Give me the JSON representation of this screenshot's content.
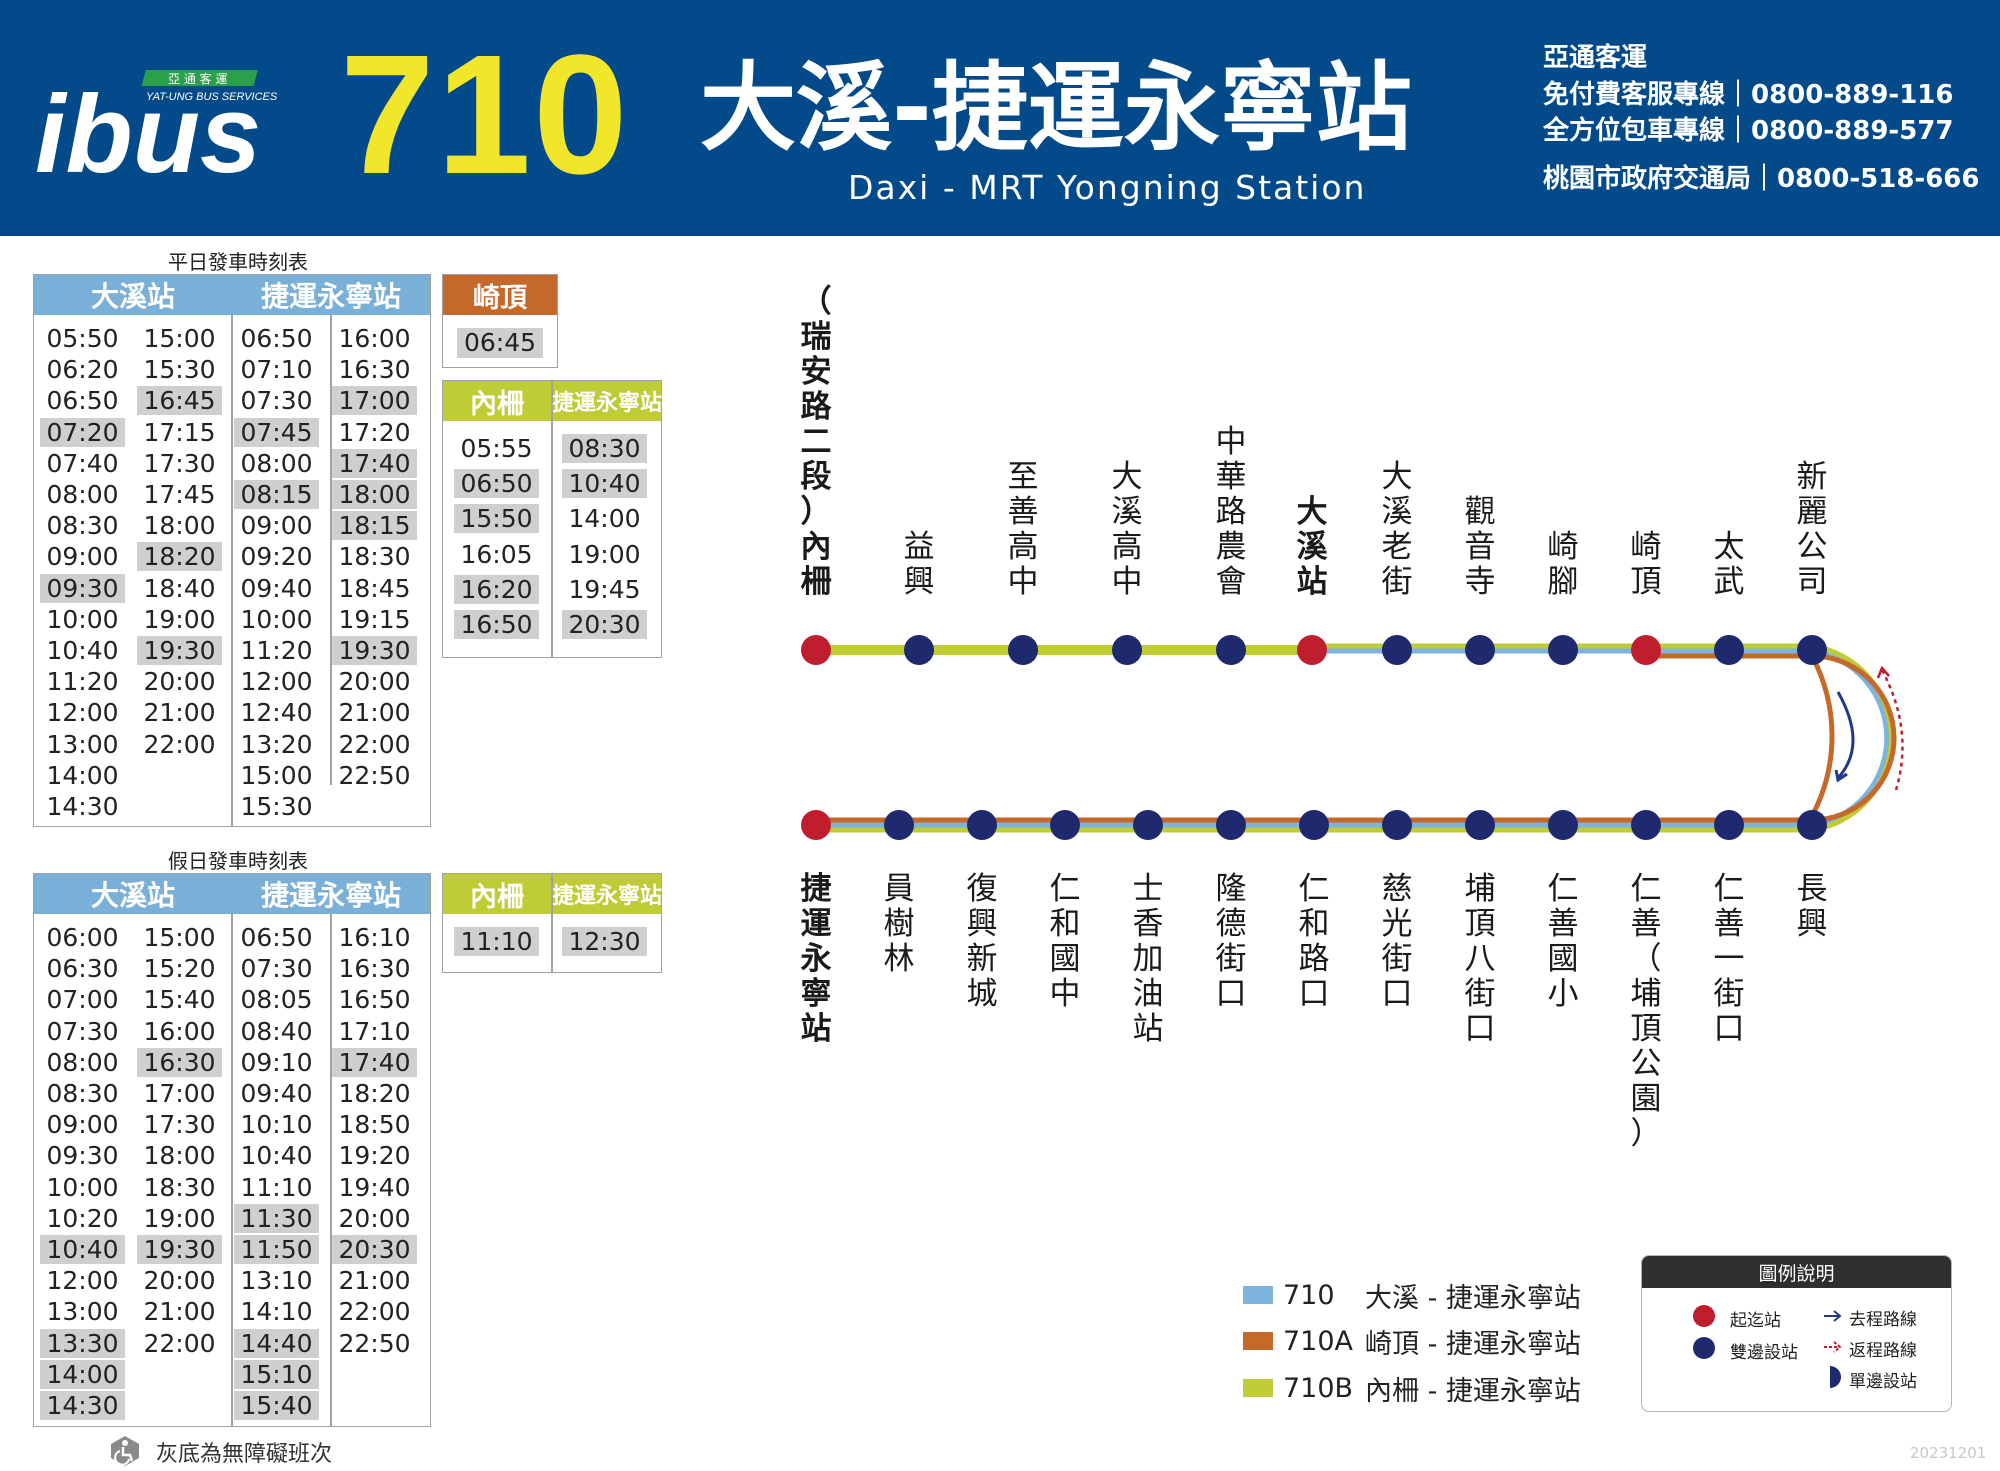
{
  "header": {
    "logo_text": "ibus",
    "logo_company_cn": "亞 通 客 運",
    "logo_company_en": "YAT-UNG BUS SERVICES",
    "route_number": "710",
    "route_title": "大溪-捷運永寧站",
    "route_subtitle": "Daxi - MRT Yongning Station",
    "company": "亞通客運",
    "hotline1": "免付費客服專線｜0800-889-116",
    "hotline2": "全方位包車專線｜0800-889-577",
    "hotline3": "桃園市政府交通局｜0800-518-666"
  },
  "weekday": {
    "caption": "平日發車時刻表",
    "col1_header": "大溪站",
    "col2_header": "捷運永寧站",
    "cols": [
      [
        "05:50",
        "06:20",
        "06:50",
        "07:20",
        "07:40",
        "08:00",
        "08:30",
        "09:00",
        "09:30",
        "10:00",
        "10:40",
        "11:20",
        "12:00",
        "13:00",
        "14:00",
        "14:30"
      ],
      [
        "15:00",
        "15:30",
        "16:45",
        "17:15",
        "17:30",
        "17:45",
        "18:00",
        "18:20",
        "18:40",
        "19:00",
        "19:30",
        "20:00",
        "21:00",
        "22:00"
      ],
      [
        "06:50",
        "07:10",
        "07:30",
        "07:45",
        "08:00",
        "08:15",
        "09:00",
        "09:20",
        "09:40",
        "10:00",
        "11:20",
        "12:00",
        "12:40",
        "13:20",
        "15:00",
        "15:30"
      ],
      [
        "16:00",
        "16:30",
        "17:00",
        "17:20",
        "17:40",
        "18:00",
        "18:15",
        "18:30",
        "18:45",
        "19:15",
        "19:30",
        "20:00",
        "21:00",
        "22:00",
        "22:50"
      ]
    ],
    "highlight": [
      [
        3,
        8
      ],
      [
        2,
        7,
        10
      ],
      [
        3,
        5
      ],
      [
        2,
        4,
        5,
        6,
        10
      ]
    ]
  },
  "qiding": {
    "header": "崎頂",
    "times": [
      "06:45"
    ]
  },
  "neili_weekday": {
    "header1": "內柵",
    "header2": "捷運永寧站",
    "cols": [
      [
        "05:55",
        "06:50",
        "15:50",
        "16:05",
        "16:20",
        "16:50"
      ],
      [
        "08:30",
        "10:40",
        "14:00",
        "19:00",
        "19:45",
        "20:30"
      ]
    ],
    "highlight": [
      [
        1,
        2,
        4,
        5
      ],
      [
        0,
        1,
        5
      ]
    ]
  },
  "holiday": {
    "caption": "假日發車時刻表",
    "col1_header": "大溪站",
    "col2_header": "捷運永寧站",
    "cols": [
      [
        "06:00",
        "06:30",
        "07:00",
        "07:30",
        "08:00",
        "08:30",
        "09:00",
        "09:30",
        "10:00",
        "10:20",
        "10:40",
        "12:00",
        "13:00",
        "13:30",
        "14:00",
        "14:30"
      ],
      [
        "15:00",
        "15:20",
        "15:40",
        "16:00",
        "16:30",
        "17:00",
        "17:30",
        "18:00",
        "18:30",
        "19:00",
        "19:30",
        "20:00",
        "21:00",
        "22:00"
      ],
      [
        "06:50",
        "07:30",
        "08:05",
        "08:40",
        "09:10",
        "09:40",
        "10:10",
        "10:40",
        "11:10",
        "11:30",
        "11:50",
        "13:10",
        "14:10",
        "14:40",
        "15:10",
        "15:40"
      ],
      [
        "16:10",
        "16:30",
        "16:50",
        "17:10",
        "17:40",
        "18:20",
        "18:50",
        "19:20",
        "19:40",
        "20:00",
        "20:30",
        "21:00",
        "22:00",
        "22:50"
      ]
    ],
    "highlight": [
      [
        10,
        13,
        14,
        15
      ],
      [
        4,
        10
      ],
      [
        9,
        10,
        13,
        14,
        15
      ],
      [
        4,
        10
      ]
    ]
  },
  "neili_holiday": {
    "header1": "內柵",
    "header2": "捷運永寧站",
    "cols": [
      [
        "11:10"
      ],
      [
        "12:30"
      ]
    ],
    "highlight": [
      [
        0
      ],
      [
        0
      ]
    ]
  },
  "top_stations": [
    "（瑞安路二段）內柵",
    "益興",
    "至善高中",
    "大溪高中",
    "中華路農會",
    "大溪站",
    "大溪老街",
    "觀音寺",
    "崎腳",
    "崎頂",
    "太武",
    "新麗公司"
  ],
  "bottom_stations": [
    "捷運永寧站",
    "員樹林",
    "復興新城",
    "仁和國中",
    "士香加油站",
    "隆德街口",
    "仁和路口",
    "慈光街口",
    "埔頂八街口",
    "仁善國小",
    "仁善（埔頂公園）",
    "仁善一街口",
    "長興"
  ],
  "legend": {
    "routes": [
      {
        "code": "710",
        "name": "大溪 - 捷運永寧站",
        "color": "#7eb3db"
      },
      {
        "code": "710A",
        "name": "崎頂 - 捷運永寧站",
        "color": "#c5692b"
      },
      {
        "code": "710B",
        "name": "內柵 - 捷運永寧站",
        "color": "#bfcc36"
      }
    ],
    "title": "圖例說明",
    "terminal": "起迄站",
    "both_sides": "雙邊設站",
    "outbound": "去程路線",
    "inbound": "返程路線",
    "one_side": "單邊設站",
    "terminal_color": "#c01e2e",
    "stop_color": "#1f2a6e"
  },
  "note": "灰底為無障礙班次",
  "date_stamp": "20231201"
}
